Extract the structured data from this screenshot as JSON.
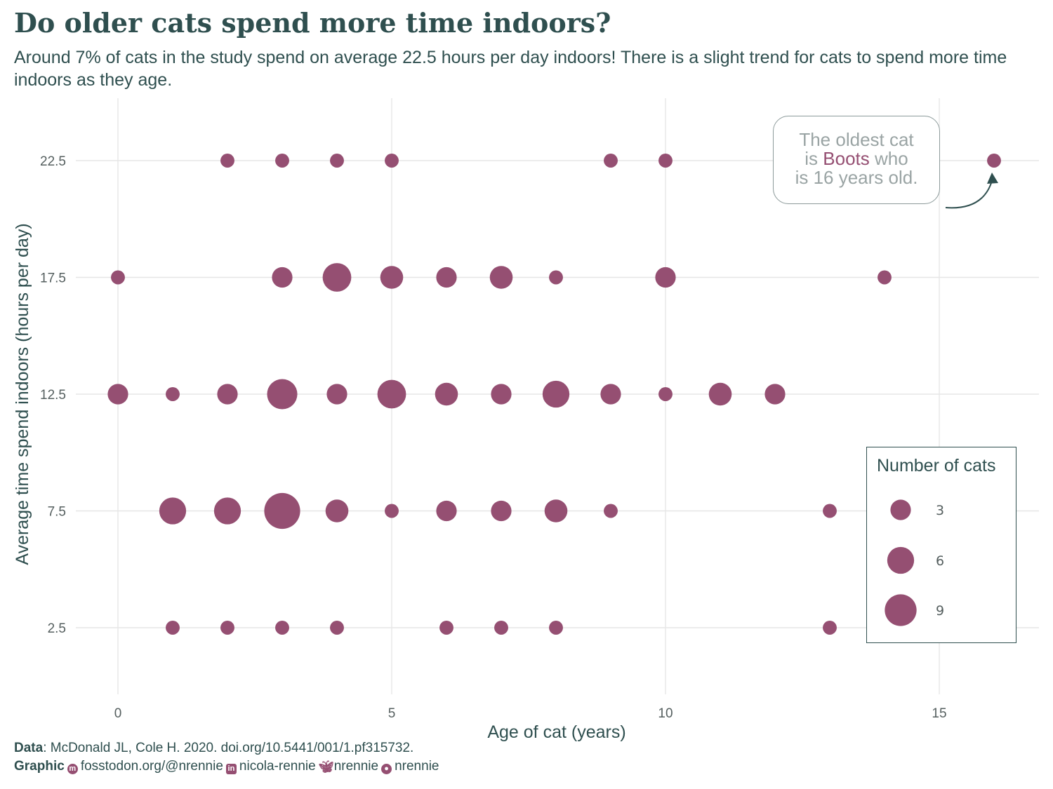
{
  "title": "Do older cats spend more time indoors?",
  "subtitle": "Around 7% of cats in the study spend on average 22.5 hours per day indoors! There is a slight trend for cats to spend more time indoors as they age.",
  "annotation": {
    "line1": "The oldest cat",
    "line2_prefix": "is ",
    "line2_highlight": "Boots",
    "line2_suffix": " who",
    "line3": "is 16 years old."
  },
  "caption": {
    "data_label": "Data",
    "data_text": ": McDonald JL, Cole H. 2020. doi.org/10.5441/001/1.pf315732.",
    "graphic_label": "Graphic",
    "mastodon": "fosstodon.org/@nrennie",
    "linkedin": "nicola-rennie",
    "bluesky": "nrennie",
    "github": "nrennie"
  },
  "icons": {
    "mastodon": "mastodon-icon",
    "linkedin": "linkedin-icon",
    "bluesky": "bluesky-icon",
    "github": "github-icon"
  },
  "colors": {
    "point": "#954F72",
    "text": "#2F4F4F",
    "grid": "#e6e6e6"
  },
  "chart_data": {
    "type": "scatter",
    "encoding": "bubble",
    "xlabel": "Age of cat (years)",
    "ylabel": "Average time spend indoors (hours per day)",
    "xlim": [
      0,
      16
    ],
    "ylim": [
      2.5,
      22.5
    ],
    "x_ticks": [
      0,
      5,
      10,
      15
    ],
    "y_ticks": [
      2.5,
      7.5,
      12.5,
      17.5,
      22.5
    ],
    "x_tick_labels": [
      "0",
      "5",
      "10",
      "15"
    ],
    "y_tick_labels": [
      "2.5",
      "7.5",
      "12.5",
      "17.5",
      "22.5"
    ],
    "grid": true,
    "legend": {
      "title": "Number of cats",
      "placement": "bottom-right",
      "sizes": [
        3,
        6,
        9
      ],
      "labels": [
        "3",
        "6",
        "9"
      ]
    },
    "points": [
      {
        "x": 2,
        "y": 22.5,
        "n": 1
      },
      {
        "x": 3,
        "y": 22.5,
        "n": 1
      },
      {
        "x": 4,
        "y": 22.5,
        "n": 1
      },
      {
        "x": 5,
        "y": 22.5,
        "n": 1
      },
      {
        "x": 9,
        "y": 22.5,
        "n": 1
      },
      {
        "x": 10,
        "y": 22.5,
        "n": 1
      },
      {
        "x": 16,
        "y": 22.5,
        "n": 1
      },
      {
        "x": 0,
        "y": 17.5,
        "n": 1
      },
      {
        "x": 3,
        "y": 17.5,
        "n": 3
      },
      {
        "x": 4,
        "y": 17.5,
        "n": 7
      },
      {
        "x": 5,
        "y": 17.5,
        "n": 4
      },
      {
        "x": 6,
        "y": 17.5,
        "n": 3
      },
      {
        "x": 7,
        "y": 17.5,
        "n": 4
      },
      {
        "x": 8,
        "y": 17.5,
        "n": 1
      },
      {
        "x": 10,
        "y": 17.5,
        "n": 3
      },
      {
        "x": 14,
        "y": 17.5,
        "n": 1
      },
      {
        "x": 0,
        "y": 12.5,
        "n": 3
      },
      {
        "x": 1,
        "y": 12.5,
        "n": 1
      },
      {
        "x": 2,
        "y": 12.5,
        "n": 3
      },
      {
        "x": 3,
        "y": 12.5,
        "n": 8
      },
      {
        "x": 4,
        "y": 12.5,
        "n": 3
      },
      {
        "x": 5,
        "y": 12.5,
        "n": 7
      },
      {
        "x": 6,
        "y": 12.5,
        "n": 4
      },
      {
        "x": 7,
        "y": 12.5,
        "n": 3
      },
      {
        "x": 8,
        "y": 12.5,
        "n": 6
      },
      {
        "x": 9,
        "y": 12.5,
        "n": 3
      },
      {
        "x": 10,
        "y": 12.5,
        "n": 1
      },
      {
        "x": 11,
        "y": 12.5,
        "n": 4
      },
      {
        "x": 12,
        "y": 12.5,
        "n": 3
      },
      {
        "x": 1,
        "y": 7.5,
        "n": 6
      },
      {
        "x": 2,
        "y": 7.5,
        "n": 6
      },
      {
        "x": 3,
        "y": 7.5,
        "n": 12
      },
      {
        "x": 4,
        "y": 7.5,
        "n": 4
      },
      {
        "x": 5,
        "y": 7.5,
        "n": 1
      },
      {
        "x": 6,
        "y": 7.5,
        "n": 3
      },
      {
        "x": 7,
        "y": 7.5,
        "n": 3
      },
      {
        "x": 8,
        "y": 7.5,
        "n": 4
      },
      {
        "x": 9,
        "y": 7.5,
        "n": 1
      },
      {
        "x": 13,
        "y": 7.5,
        "n": 1
      },
      {
        "x": 1,
        "y": 2.5,
        "n": 1
      },
      {
        "x": 2,
        "y": 2.5,
        "n": 1
      },
      {
        "x": 3,
        "y": 2.5,
        "n": 1
      },
      {
        "x": 4,
        "y": 2.5,
        "n": 1
      },
      {
        "x": 6,
        "y": 2.5,
        "n": 1
      },
      {
        "x": 7,
        "y": 2.5,
        "n": 1
      },
      {
        "x": 8,
        "y": 2.5,
        "n": 1
      },
      {
        "x": 13,
        "y": 2.5,
        "n": 1
      }
    ]
  }
}
